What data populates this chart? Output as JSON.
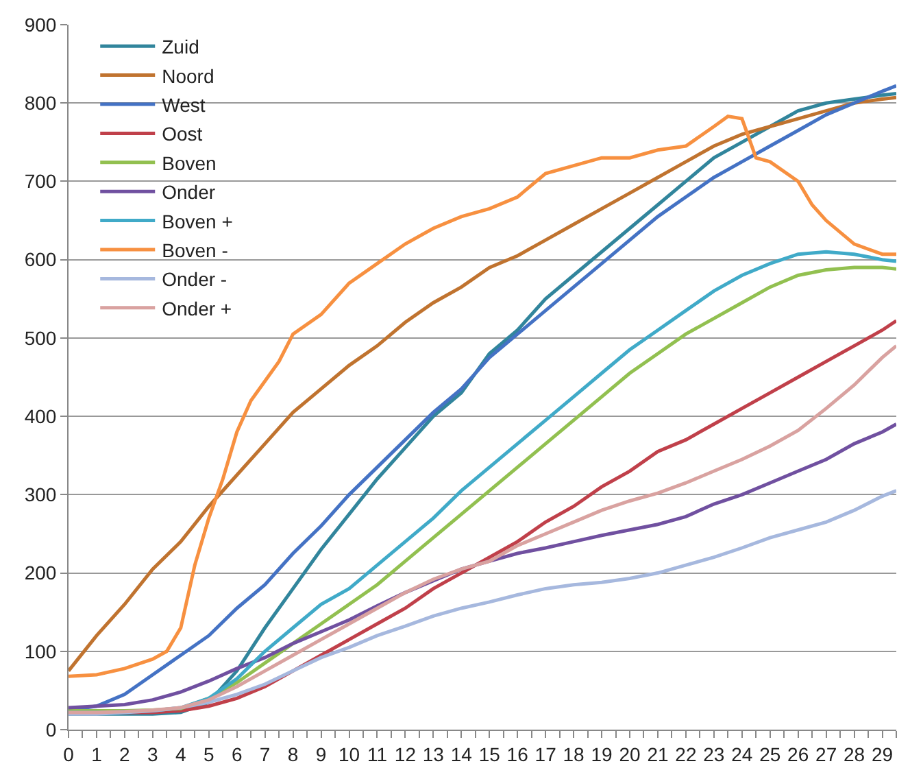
{
  "chart_data": {
    "type": "line",
    "x": [
      0,
      1,
      2,
      3,
      4,
      5,
      6,
      7,
      8,
      9,
      10,
      11,
      12,
      13,
      14,
      15,
      16,
      17,
      18,
      19,
      20,
      21,
      22,
      23,
      24,
      25,
      26,
      27,
      28,
      29,
      29.5
    ],
    "xlim": [
      0,
      29.5
    ],
    "xticks": [
      0,
      {
        "value": 0.5,
        "label": null
      },
      1,
      {
        "value": 1.5,
        "label": null
      },
      2,
      {
        "value": 2.5,
        "label": null
      },
      3,
      {
        "value": 3.5,
        "label": null
      },
      4,
      {
        "value": 4.5,
        "label": null
      },
      5,
      {
        "value": 5.5,
        "label": null
      },
      6,
      {
        "value": 6.5,
        "label": null
      },
      7,
      {
        "value": 7.5,
        "label": null
      },
      8,
      {
        "value": 8.5,
        "label": null
      },
      9,
      {
        "value": 9.5,
        "label": null
      },
      10,
      {
        "value": 10.5,
        "label": null
      },
      11,
      {
        "value": 11.5,
        "label": null
      },
      12,
      {
        "value": 12.5,
        "label": null
      },
      13,
      {
        "value": 13.5,
        "label": null
      },
      14,
      {
        "value": 14.5,
        "label": null
      },
      15,
      {
        "value": 15.5,
        "label": null
      },
      16,
      {
        "value": 16.5,
        "label": null
      },
      17,
      {
        "value": 17.5,
        "label": null
      },
      18,
      {
        "value": 18.5,
        "label": null
      },
      19,
      {
        "value": 19.5,
        "label": null
      },
      20,
      {
        "value": 20.5,
        "label": null
      },
      21,
      {
        "value": 21.5,
        "label": null
      },
      22,
      {
        "value": 22.5,
        "label": null
      },
      23,
      {
        "value": 23.5,
        "label": null
      },
      24,
      {
        "value": 24.5,
        "label": null
      },
      25,
      {
        "value": 25.5,
        "label": null
      },
      26,
      {
        "value": 26.5,
        "label": null
      },
      27,
      {
        "value": 27.5,
        "label": null
      },
      28,
      {
        "value": 28.5,
        "label": null
      },
      29,
      {
        "value": 29.5,
        "label": null
      }
    ],
    "ylim": [
      0,
      900
    ],
    "yticks": [
      0,
      100,
      200,
      300,
      400,
      500,
      600,
      700,
      800,
      900
    ],
    "grid": "y",
    "legend": "top left",
    "marker": "none",
    "line_style": "solid",
    "series": [
      {
        "name": "Zuid",
        "color": "#31859c",
        "values": [
          20,
          20,
          20,
          20,
          22,
          35,
          75,
          130,
          180,
          230,
          275,
          320,
          360,
          400,
          430,
          480,
          510,
          550,
          580,
          610,
          640,
          670,
          700,
          730,
          750,
          770,
          790,
          800,
          805,
          810,
          812
        ]
      },
      {
        "name": "Noord",
        "color": "#c0732f",
        "values": [
          75,
          120,
          160,
          205,
          240,
          285,
          325,
          365,
          405,
          435,
          465,
          490,
          520,
          545,
          565,
          590,
          605,
          625,
          645,
          665,
          685,
          705,
          725,
          745,
          760,
          770,
          780,
          790,
          800,
          805,
          807
        ]
      },
      {
        "name": "West",
        "color": "#4472c4",
        "values": [
          25,
          30,
          45,
          70,
          95,
          120,
          155,
          185,
          225,
          260,
          300,
          335,
          370,
          405,
          435,
          475,
          505,
          535,
          565,
          595,
          625,
          655,
          680,
          705,
          725,
          745,
          765,
          785,
          800,
          815,
          822
        ]
      },
      {
        "name": "Oost",
        "color": "#c0404a",
        "values": [
          22,
          22,
          22,
          22,
          24,
          30,
          40,
          55,
          75,
          95,
          115,
          135,
          155,
          180,
          200,
          220,
          240,
          265,
          285,
          310,
          330,
          355,
          370,
          390,
          410,
          430,
          450,
          470,
          490,
          510,
          522
        ]
      },
      {
        "name": "Boven",
        "color": "#92c050",
        "values": [
          24,
          24,
          24,
          25,
          27,
          40,
          60,
          85,
          110,
          135,
          160,
          185,
          215,
          245,
          275,
          305,
          335,
          365,
          395,
          425,
          455,
          480,
          505,
          525,
          545,
          565,
          580,
          587,
          590,
          590,
          588
        ]
      },
      {
        "name": "Onder",
        "color": "#7050a0",
        "values": [
          28,
          30,
          32,
          38,
          48,
          62,
          78,
          92,
          110,
          125,
          140,
          158,
          175,
          190,
          205,
          215,
          225,
          232,
          240,
          248,
          255,
          262,
          272,
          288,
          300,
          315,
          330,
          345,
          365,
          380,
          390
        ]
      },
      {
        "name": "Boven +",
        "color": "#40aac8",
        "values": [
          22,
          22,
          23,
          24,
          28,
          40,
          65,
          100,
          130,
          160,
          180,
          210,
          240,
          270,
          305,
          335,
          365,
          395,
          425,
          455,
          485,
          510,
          535,
          560,
          580,
          595,
          607,
          610,
          607,
          600,
          598
        ]
      },
      {
        "name": "Boven -",
        "color": "#f79040",
        "x": [
          0,
          1,
          2,
          3,
          3.5,
          4,
          4.5,
          5,
          5.5,
          6,
          6.5,
          7,
          7.5,
          8,
          9,
          10,
          11,
          12,
          13,
          14,
          15,
          16,
          17,
          18,
          19,
          20,
          21,
          22,
          23,
          23.5,
          24,
          24.5,
          25,
          26,
          26.5,
          27,
          28,
          29,
          29.5
        ],
        "values": [
          68,
          70,
          78,
          90,
          100,
          130,
          210,
          270,
          320,
          380,
          420,
          445,
          470,
          505,
          530,
          570,
          595,
          620,
          640,
          655,
          665,
          680,
          710,
          720,
          730,
          730,
          740,
          745,
          770,
          783,
          780,
          730,
          725,
          700,
          670,
          650,
          620,
          607,
          607
        ]
      },
      {
        "name": "Onder -",
        "color": "#a6b8de",
        "values": [
          20,
          20,
          22,
          24,
          28,
          35,
          45,
          58,
          75,
          92,
          105,
          120,
          132,
          145,
          155,
          163,
          172,
          180,
          185,
          188,
          193,
          200,
          210,
          220,
          232,
          245,
          255,
          265,
          280,
          298,
          305
        ]
      },
      {
        "name": "Onder +",
        "color": "#d9a2a0",
        "values": [
          22,
          22,
          23,
          25,
          28,
          38,
          55,
          75,
          95,
          115,
          135,
          155,
          175,
          192,
          205,
          215,
          235,
          250,
          265,
          280,
          292,
          302,
          315,
          330,
          345,
          362,
          382,
          410,
          440,
          475,
          490
        ]
      }
    ]
  }
}
